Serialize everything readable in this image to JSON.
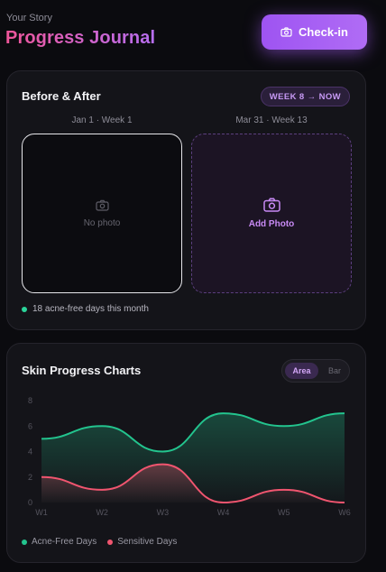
{
  "header": {
    "eyebrow": "Your Story",
    "title": "Progress Journal",
    "checkin_label": "Check-in"
  },
  "before_after": {
    "title": "Before & After",
    "range_pill": "WEEK 8 → NOW",
    "before_label": "Jan 1 · Week 1",
    "after_label": "Mar 31 · Week 13",
    "before_placeholder": "No photo",
    "after_action": "Add Photo",
    "stat_text": "18 acne-free days this month",
    "stat_color": "#2bd49a"
  },
  "charts": {
    "title": "Skin Progress Charts",
    "toggle_options": [
      "Area",
      "Bar"
    ],
    "selected": "Area"
  },
  "chart_data": {
    "type": "area",
    "categories": [
      "W1",
      "W2",
      "W3",
      "W4",
      "W5",
      "W6"
    ],
    "y_ticks": [
      "8",
      "6",
      "4",
      "2",
      "0"
    ],
    "ylim": [
      0,
      8
    ],
    "grid": false,
    "legend_position": "bottom-left",
    "series": [
      {
        "name": "Acne-Free Days",
        "values": [
          5,
          6,
          4,
          7,
          6,
          7
        ],
        "color": "#23c48e"
      },
      {
        "name": "Sensitive Days",
        "values": [
          2,
          1,
          3,
          0,
          1,
          0
        ],
        "color": "#f0556f"
      }
    ]
  }
}
